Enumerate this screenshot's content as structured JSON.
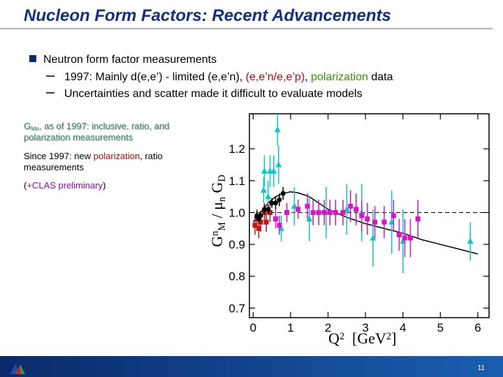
{
  "header": {
    "title": "Nucleon Form Factors:  Recent Advancements"
  },
  "bullets": [
    {
      "text": "Neutron form factor measurements",
      "items": [
        [
          {
            "text": "1997: Mainly d(e,e’) - limited (e,e’n), ",
            "color": "#000000"
          },
          {
            "text": "(e,e’n/e,e’p)",
            "color": "#cc0000"
          },
          {
            "text": ", ",
            "color": "#000000"
          },
          {
            "text": "polarization",
            "color": "#339900"
          },
          {
            "text": " data",
            "color": "#000000"
          }
        ],
        [
          {
            "text": "Uncertainties and scatter made it difficult to evaluate models",
            "color": "#000000"
          }
        ]
      ]
    }
  ],
  "notes": [
    [
      [
        {
          "text": "G",
          "color": "#3d8c6e"
        },
        {
          "text": "Mn",
          "color": "#3d8c6e",
          "shift": "sub"
        },
        {
          "text": ", as of 1997: inclusive, ratio, and",
          "color": "#3d8c6e"
        }
      ],
      [
        {
          "text": "polarization measurements",
          "color": "#3d8c6e"
        }
      ]
    ],
    [
      [
        {
          "text": "Since 1997: new ",
          "color": "#000000"
        },
        {
          "text": "polarization",
          "color": "#cc0000"
        },
        {
          "text": ", ratio",
          "color": "#000000"
        }
      ],
      [
        {
          "text": "measurements",
          "color": "#000000"
        }
      ]
    ],
    [
      [
        {
          "text": "(",
          "color": "#000000"
        },
        {
          "text": "+CLAS preliminary",
          "color": "#9900cc"
        },
        {
          "text": ")",
          "color": "#000000"
        }
      ]
    ]
  ],
  "chart": {
    "type": "scatter",
    "ylabel": [
      {
        "text": "G"
      },
      {
        "text": "n",
        "shift": "sup"
      },
      {
        "text": "M",
        "shift": "sub"
      },
      {
        "text": " / μ"
      },
      {
        "text": "n",
        "shift": "sub"
      },
      {
        "text": " G"
      },
      {
        "text": "D",
        "shift": "sub"
      }
    ],
    "xlabel": [
      {
        "text": "Q"
      },
      {
        "text": "2",
        "shift": "sup"
      },
      {
        "text": "  [GeV"
      },
      {
        "text": "2",
        "shift": "sup"
      },
      {
        "text": "]"
      }
    ],
    "xlim": [
      -0.1,
      6.3
    ],
    "ylim": [
      0.67,
      1.31
    ],
    "xticks": [
      0,
      1,
      2,
      3,
      4,
      5,
      6
    ],
    "yticks": [
      0.7,
      0.8,
      0.9,
      {
        "value": 1,
        "label": "1.0"
      },
      1.1,
      1.2
    ],
    "reference": 1,
    "curve": {
      "color": "#000000",
      "x": [
        0,
        0.2,
        0.4,
        0.6,
        0.8,
        1.0,
        1.2,
        1.5,
        2.0,
        2.5,
        3.0,
        3.5,
        4.0,
        4.5,
        5.0,
        5.5,
        6.0
      ],
      "y": [
        0.97,
        1.0,
        1.03,
        1.05,
        1.06,
        1.065,
        1.062,
        1.05,
        1.01,
        0.985,
        0.965,
        0.95,
        0.935,
        0.915,
        0.9,
        0.885,
        0.87
      ]
    },
    "series": [
      {
        "color": "#00cccc",
        "marker": "triangle",
        "x": [
          0.65,
          0.28,
          0.3,
          0.4,
          0.45,
          0.55,
          0.68,
          0.75,
          1.1,
          1.5,
          1.95,
          2.5,
          2.9,
          3.2,
          3.7,
          4.0,
          5.8
        ],
        "y": [
          1.26,
          1.07,
          1.13,
          1.05,
          1.13,
          1.13,
          1.15,
          0.95,
          1.02,
          0.98,
          1.0,
          1.01,
          1.0,
          0.92,
          0.97,
          0.91,
          0.91
        ],
        "err": [
          0.05,
          0.04,
          0.05,
          0.05,
          0.05,
          0.05,
          0.06,
          0.04,
          0.06,
          0.07,
          0.08,
          0.08,
          0.09,
          0.09,
          0.1,
          0.1,
          0.06
        ]
      },
      {
        "color": "#dd11cc",
        "marker": "square",
        "x": [
          0.6,
          0.7,
          0.9,
          1.2,
          1.45,
          1.6,
          1.75,
          1.9,
          2.05,
          2.2,
          2.4,
          2.6,
          2.75,
          2.9,
          3.05,
          3.25,
          3.5,
          3.75,
          3.9,
          4.05,
          4.2,
          4.4
        ],
        "y": [
          0.98,
          0.96,
          1.0,
          1.01,
          1.02,
          1.0,
          1.0,
          1.0,
          1.0,
          1.0,
          1.0,
          1.02,
          1.01,
          0.99,
          0.98,
          0.97,
          0.97,
          0.99,
          0.93,
          0.92,
          0.92,
          0.98
        ],
        "err": [
          0.03,
          0.03,
          0.03,
          0.03,
          0.04,
          0.04,
          0.04,
          0.04,
          0.04,
          0.04,
          0.04,
          0.05,
          0.05,
          0.05,
          0.05,
          0.05,
          0.05,
          0.05,
          0.05,
          0.06,
          0.06,
          0.06
        ]
      },
      {
        "color": "#cc1111",
        "marker": "square",
        "x": [
          0.05,
          0.1,
          0.15,
          0.2,
          0.3,
          0.35,
          0.45
        ],
        "y": [
          0.96,
          0.98,
          0.95,
          0.97,
          1.0,
          0.97,
          1.0
        ],
        "err": [
          0.03,
          0.03,
          0.03,
          0.03,
          0.03,
          0.03,
          0.03
        ]
      },
      {
        "color": "#000000",
        "marker": "circle",
        "x": [
          0.1,
          0.15,
          0.2,
          0.3,
          0.4,
          0.5,
          0.6,
          0.7,
          0.8
        ],
        "y": [
          0.99,
          0.98,
          0.99,
          1.01,
          1.01,
          1.03,
          1.03,
          1.04,
          1.06
        ],
        "err": [
          0.015,
          0.015,
          0.015,
          0.015,
          0.015,
          0.015,
          0.02,
          0.02,
          0.02
        ]
      }
    ]
  },
  "footer": {
    "page": "11"
  }
}
